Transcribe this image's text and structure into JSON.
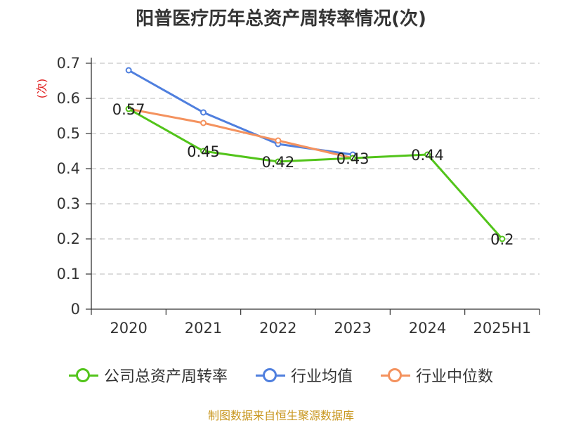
{
  "title": "阳普医疗历年总资产周转率情况(次)",
  "source": "制图数据来自恒生聚源数据库",
  "chart_data": {
    "type": "line",
    "title": "阳普医疗历年总资产周转率情况(次)",
    "ylabel": "(次)",
    "categories": [
      "2020",
      "2021",
      "2022",
      "2023",
      "2024",
      "2025H1"
    ],
    "ylim": [
      0,
      0.7
    ],
    "yticks": [
      "0",
      "0.1",
      "0.2",
      "0.3",
      "0.4",
      "0.5",
      "0.6",
      "0.7"
    ],
    "grid": true,
    "legend_position": "bottom",
    "series": [
      {
        "name": "公司总资产周转率",
        "color": "#52c41a",
        "values": [
          0.57,
          0.45,
          0.42,
          0.43,
          0.44,
          0.2
        ],
        "labels": [
          "0.57",
          "0.45",
          "0.42",
          "0.43",
          "0.44",
          "0.2"
        ]
      },
      {
        "name": "行业均值",
        "color": "#4f7fde",
        "values": [
          0.68,
          0.56,
          0.47,
          0.44,
          null,
          null
        ]
      },
      {
        "name": "行业中位数",
        "color": "#f4925e",
        "values": [
          0.57,
          0.53,
          0.48,
          0.43,
          null,
          null
        ]
      }
    ]
  }
}
